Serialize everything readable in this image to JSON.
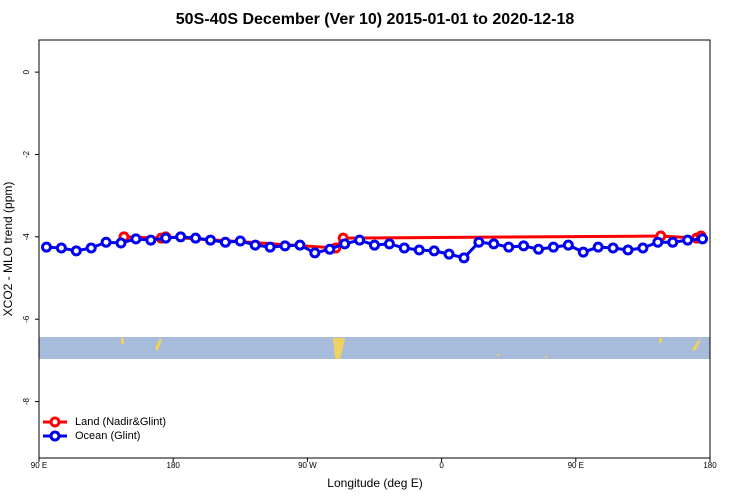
{
  "chart_data": {
    "type": "line",
    "title": "50S-40S December (Ver 10)   2015-01-01 to 2020-12-18",
    "x_label": "Longitude (deg E)",
    "y_label": "XCO2 - MLO trend (ppm)",
    "xlim": [
      90,
      540
    ],
    "ylim": [
      -9.37,
      0.78
    ],
    "xticks": [
      {
        "value": 90,
        "label": "90 E"
      },
      180,
      {
        "value": 270,
        "label": "90 W"
      },
      {
        "value": 360,
        "label": "0"
      },
      {
        "value": 450,
        "label": "90 E"
      },
      {
        "value": 540,
        "label": "180"
      }
    ],
    "yticks": [
      0,
      -2,
      -4,
      -6,
      -8
    ],
    "legend": "bottom-left",
    "series": [
      {
        "name": "Land (Nadir&Glint)",
        "color": "#ff0000",
        "x": [
          147,
          172,
          175,
          289,
          294,
          507,
          531,
          534
        ],
        "values": [
          -4.0,
          -4.03,
          -4.0,
          -4.27,
          -4.03,
          -3.98,
          -4.03,
          -3.98
        ]
      },
      {
        "name": "Ocean (Glint)",
        "color": "#0000ee",
        "x": [
          95,
          105,
          115,
          125,
          135,
          145,
          155,
          165,
          175,
          185,
          195,
          205,
          215,
          225,
          235,
          245,
          255,
          265,
          275,
          285,
          295,
          305,
          315,
          325,
          335,
          345,
          355,
          365,
          375,
          385,
          395,
          405,
          415,
          425,
          435,
          445,
          455,
          465,
          475,
          485,
          495,
          505,
          515,
          525,
          535
        ],
        "values": [
          -4.25,
          -4.27,
          -4.34,
          -4.27,
          -4.13,
          -4.15,
          -4.05,
          -4.08,
          -4.03,
          -4.0,
          -4.03,
          -4.08,
          -4.13,
          -4.1,
          -4.2,
          -4.25,
          -4.22,
          -4.2,
          -4.39,
          -4.3,
          -4.17,
          -4.08,
          -4.2,
          -4.17,
          -4.27,
          -4.32,
          -4.34,
          -4.42,
          -4.51,
          -4.13,
          -4.17,
          -4.25,
          -4.22,
          -4.3,
          -4.25,
          -4.2,
          -4.37,
          -4.25,
          -4.27,
          -4.32,
          -4.27,
          -4.13,
          -4.13,
          -4.08,
          -4.05
        ]
      }
    ]
  }
}
